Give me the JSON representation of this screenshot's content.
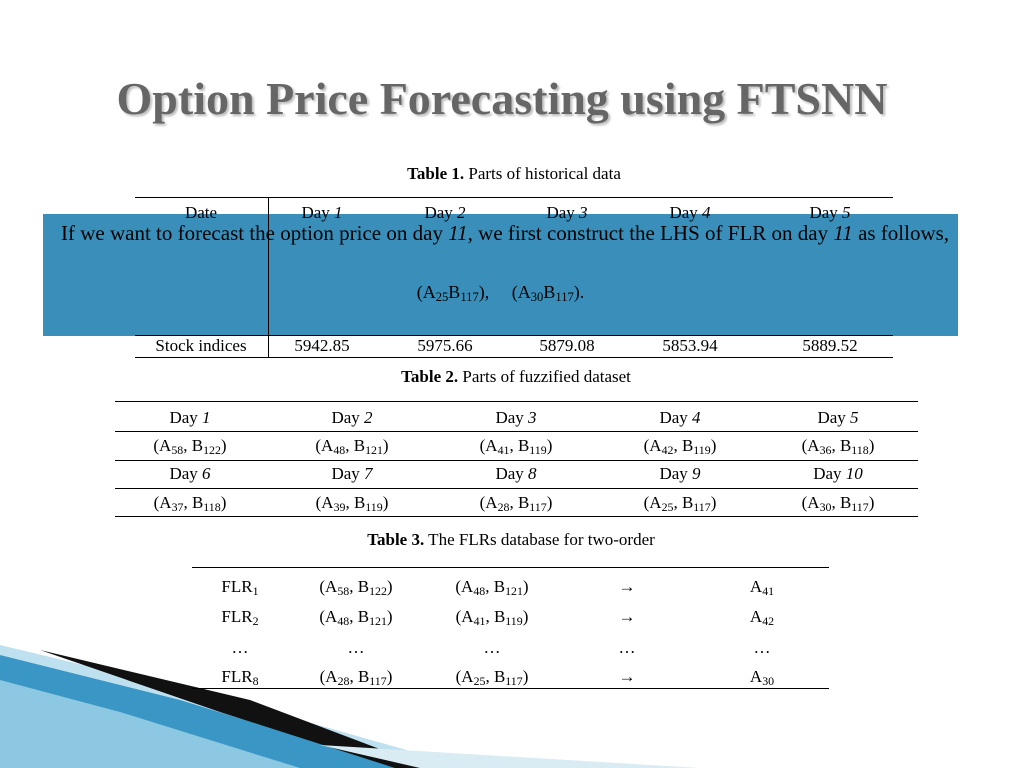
{
  "title": "Option Price Forecasting using FTSNN",
  "table1": {
    "caption": {
      "label": "Table 1.",
      "text": "Parts of historical data"
    },
    "header": [
      "Date",
      [
        "Day ",
        {
          "i": "1"
        }
      ],
      [
        "Day ",
        {
          "i": "2"
        }
      ],
      [
        "Day ",
        {
          "i": "3"
        }
      ],
      [
        "Day ",
        {
          "i": "4"
        }
      ],
      [
        "Day ",
        {
          "i": "5"
        }
      ]
    ],
    "rows": [
      [
        "Stock indices",
        "5942.85",
        "5975.66",
        "5879.08",
        "5853.94",
        "5889.52"
      ]
    ]
  },
  "callout": {
    "text": [
      "If we want to forecast the option price on day ",
      {
        "i": "11"
      },
      ", we first construct the LHS of FLR on day ",
      {
        "i": "11"
      },
      " as follows,"
    ],
    "formula": [
      "(A",
      {
        "sub": "25"
      },
      "B",
      {
        "sub": "117"
      },
      "),     (A",
      {
        "sub": "30"
      },
      "B",
      {
        "sub": "117"
      },
      ")."
    ]
  },
  "table2": {
    "caption": {
      "label": "Table 2.",
      "text": "Parts of fuzzified dataset"
    },
    "rows": [
      [
        [
          "Day ",
          {
            "i": "1"
          }
        ],
        [
          "Day ",
          {
            "i": "2"
          }
        ],
        [
          "Day ",
          {
            "i": "3"
          }
        ],
        [
          "Day ",
          {
            "i": "4"
          }
        ],
        [
          "Day ",
          {
            "i": "5"
          }
        ]
      ],
      [
        [
          "(A",
          {
            "sub": "58"
          },
          ", B",
          {
            "sub": "122"
          },
          ")"
        ],
        [
          "(A",
          {
            "sub": "48"
          },
          ", B",
          {
            "sub": "121"
          },
          ")"
        ],
        [
          "(A",
          {
            "sub": "41"
          },
          ", B",
          {
            "sub": "119"
          },
          ")"
        ],
        [
          "(A",
          {
            "sub": "42"
          },
          ", B",
          {
            "sub": "119"
          },
          ")"
        ],
        [
          "(A",
          {
            "sub": "36"
          },
          ", B",
          {
            "sub": "118"
          },
          ")"
        ]
      ],
      [
        [
          "Day ",
          {
            "i": "6"
          }
        ],
        [
          "Day ",
          {
            "i": "7"
          }
        ],
        [
          "Day ",
          {
            "i": "8"
          }
        ],
        [
          "Day ",
          {
            "i": "9"
          }
        ],
        [
          "Day ",
          {
            "i": "10"
          }
        ]
      ],
      [
        [
          "(A",
          {
            "sub": "37"
          },
          ", B",
          {
            "sub": "118"
          },
          ")"
        ],
        [
          "(A",
          {
            "sub": "39"
          },
          ", B",
          {
            "sub": "119"
          },
          ")"
        ],
        [
          "(A",
          {
            "sub": "28"
          },
          ", B",
          {
            "sub": "117"
          },
          ")"
        ],
        [
          "(A",
          {
            "sub": "25"
          },
          ", B",
          {
            "sub": "117"
          },
          ")"
        ],
        [
          "(A",
          {
            "sub": "30"
          },
          ", B",
          {
            "sub": "117"
          },
          ")"
        ]
      ]
    ]
  },
  "table3": {
    "caption": {
      "label": "Table 3.",
      "text": "The FLRs database for two-order"
    },
    "rows": [
      [
        [
          "FLR",
          {
            "sub": "1"
          }
        ],
        [
          "(A",
          {
            "sub": "58"
          },
          ", B",
          {
            "sub": "122"
          },
          ")"
        ],
        [
          "(A",
          {
            "sub": "48"
          },
          ", B",
          {
            "sub": "121"
          },
          ")"
        ],
        "→",
        [
          "A",
          {
            "sub": "41"
          }
        ]
      ],
      [
        [
          "FLR",
          {
            "sub": "2"
          }
        ],
        [
          "(A",
          {
            "sub": "48"
          },
          ", B",
          {
            "sub": "121"
          },
          ")"
        ],
        [
          "(A",
          {
            "sub": "41"
          },
          ", B",
          {
            "sub": "119"
          },
          ")"
        ],
        "→",
        [
          "A",
          {
            "sub": "42"
          }
        ]
      ],
      [
        "…",
        "…",
        "…",
        "…",
        "…"
      ],
      [
        [
          "FLR",
          {
            "sub": "8"
          }
        ],
        [
          "(A",
          {
            "sub": "28"
          },
          ", B",
          {
            "sub": "117"
          },
          ")"
        ],
        [
          "(A",
          {
            "sub": "25"
          },
          ", B",
          {
            "sub": "117"
          },
          ")"
        ],
        "→",
        [
          "A",
          {
            "sub": "30"
          }
        ]
      ]
    ]
  }
}
